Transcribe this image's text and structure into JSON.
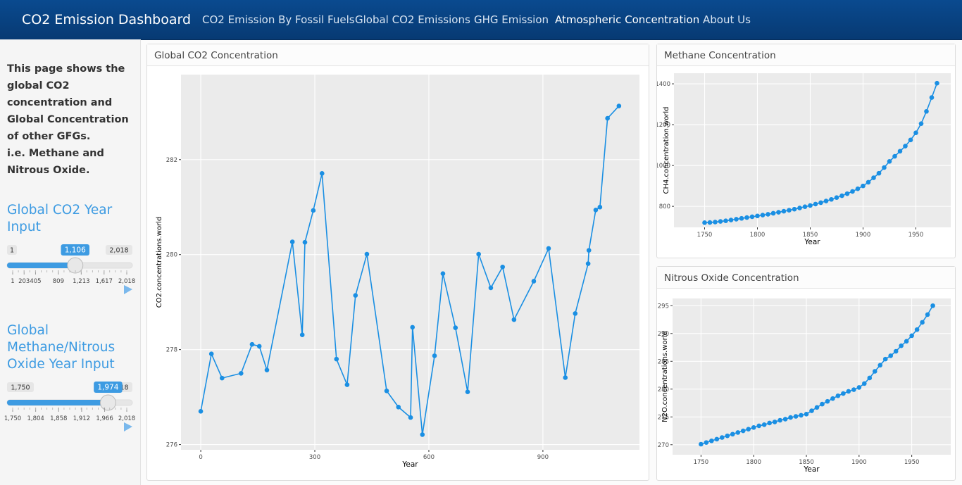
{
  "nav": {
    "brand": "CO2 Emission Dashboard",
    "tabs": [
      "CO2 Emission By Fossil Fuels",
      "Global CO2 Emissions",
      "GHG Emission",
      "Atmospheric Concentration",
      "About Us"
    ],
    "active_tab": 3
  },
  "sidebar": {
    "intro": [
      "This page shows the global CO2 concentration and Global Concentration of other GFGs.",
      "i.e. Methane and Nitrous Oxide."
    ],
    "sliders": [
      {
        "title": "Global CO2 Year Input",
        "min": {
          "value": 1,
          "label": "1"
        },
        "max": {
          "value": 2018,
          "label": "2,018"
        },
        "value": {
          "value": 1106,
          "label": "1,106"
        },
        "ticks": [
          {
            "value": 1,
            "label": "1"
          },
          203,
          405,
          809,
          {
            "value": 1213,
            "label": "1,213"
          },
          {
            "value": 1617,
            "label": "1,617"
          },
          {
            "value": 2018,
            "label": "2,018"
          }
        ]
      },
      {
        "title": "Global Methane/Nitrous Oxide Year Input",
        "min": {
          "value": 1750,
          "label": "1,750"
        },
        "max": {
          "value": 2018,
          "label": "2,018"
        },
        "value": {
          "value": 1974,
          "label": "1,974"
        },
        "ticks": [
          {
            "value": 1750,
            "label": "1,750"
          },
          {
            "value": 1804,
            "label": "1,804"
          },
          {
            "value": 1858,
            "label": "1,858"
          },
          {
            "value": 1912,
            "label": "1,912"
          },
          {
            "value": 1966,
            "label": "1,966"
          },
          {
            "value": 2018,
            "label": "2,018"
          }
        ]
      }
    ]
  },
  "chart_data": [
    {
      "type": "line",
      "title": "Global CO2 Concentration",
      "x_label": "Year",
      "y_label": "CO2.concentrations.world",
      "color": "#1a8fe3",
      "grid": true,
      "x": [
        0,
        28,
        56,
        106,
        135,
        154,
        174,
        241,
        267,
        274,
        296,
        319,
        357,
        385,
        407,
        437,
        489,
        520,
        552,
        557,
        583,
        615,
        637,
        670,
        702,
        731,
        763,
        794,
        824,
        876,
        915,
        959,
        985,
        1019,
        1021,
        1039,
        1050,
        1070,
        1100
      ],
      "values": [
        276.7,
        277.91,
        277.4,
        277.5,
        278.11,
        278.07,
        277.57,
        280.27,
        278.31,
        280.26,
        280.93,
        281.71,
        277.8,
        277.26,
        279.14,
        280.01,
        277.13,
        276.79,
        276.57,
        278.47,
        276.21,
        277.87,
        279.6,
        278.46,
        277.11,
        280.01,
        279.3,
        279.74,
        278.63,
        279.44,
        280.13,
        277.41,
        278.76,
        279.81,
        280.09,
        280.94,
        281.0,
        282.87,
        283.13
      ],
      "xlim": [
        -52,
        1154
      ],
      "xticks": [
        0,
        300,
        600,
        900
      ],
      "ylim": [
        275.89,
        283.79
      ],
      "yticks": [
        276,
        278,
        280,
        282
      ]
    },
    {
      "type": "line",
      "title": "Methane Concentration",
      "x_label": "Year",
      "y_label": "CH4.concentration.world",
      "color": "#1a8fe3",
      "grid": true,
      "x": [
        1750,
        1755,
        1760,
        1765,
        1770,
        1775,
        1780,
        1785,
        1790,
        1795,
        1800,
        1805,
        1810,
        1815,
        1820,
        1825,
        1830,
        1835,
        1840,
        1845,
        1850,
        1855,
        1860,
        1865,
        1870,
        1875,
        1880,
        1885,
        1890,
        1895,
        1900,
        1905,
        1910,
        1915,
        1920,
        1925,
        1930,
        1935,
        1940,
        1945,
        1950,
        1955,
        1960,
        1965,
        1970
      ],
      "values": [
        720,
        721,
        723,
        726,
        729,
        733,
        737,
        741,
        745,
        749,
        753,
        757,
        761,
        766,
        771,
        776,
        781,
        786,
        792,
        798,
        804,
        811,
        818,
        826,
        834,
        843,
        852,
        862,
        873,
        886,
        900,
        918,
        940,
        962,
        990,
        1020,
        1045,
        1070,
        1095,
        1125,
        1160,
        1205,
        1265,
        1333,
        1403
      ],
      "xlim": [
        1721,
        1983
      ],
      "xticks": [
        1750,
        1800,
        1850,
        1900,
        1950
      ],
      "ylim": [
        697,
        1452
      ],
      "yticks": [
        800,
        1000,
        1200,
        1400
      ]
    },
    {
      "type": "line",
      "title": "Nitrous Oxide Concentration",
      "x_label": "Year",
      "y_label": "N2O.concentrations.world",
      "color": "#1a8fe3",
      "grid": true,
      "x": [
        1750,
        1755,
        1760,
        1765,
        1770,
        1775,
        1780,
        1785,
        1790,
        1795,
        1800,
        1805,
        1810,
        1815,
        1820,
        1825,
        1830,
        1835,
        1840,
        1845,
        1850,
        1855,
        1860,
        1865,
        1870,
        1875,
        1880,
        1885,
        1890,
        1895,
        1900,
        1905,
        1910,
        1915,
        1920,
        1925,
        1930,
        1935,
        1940,
        1945,
        1950,
        1955,
        1960,
        1965,
        1970
      ],
      "values": [
        270.1,
        270.4,
        270.7,
        271.0,
        271.3,
        271.6,
        271.9,
        272.2,
        272.5,
        272.8,
        273.1,
        273.4,
        273.6,
        273.9,
        274.1,
        274.4,
        274.6,
        274.9,
        275.1,
        275.3,
        275.5,
        276.1,
        276.7,
        277.3,
        277.8,
        278.3,
        278.8,
        279.2,
        279.6,
        279.9,
        280.3,
        281.0,
        282.0,
        283.2,
        284.3,
        285.4,
        286.0,
        286.8,
        287.8,
        288.6,
        289.6,
        290.7,
        292.0,
        293.4,
        295.0
      ],
      "xlim": [
        1723,
        1987
      ],
      "xticks": [
        1750,
        1800,
        1850,
        1900,
        1950
      ],
      "ylim": [
        268.2,
        296.3
      ],
      "yticks": [
        270,
        275,
        280,
        285,
        290,
        295
      ]
    }
  ]
}
